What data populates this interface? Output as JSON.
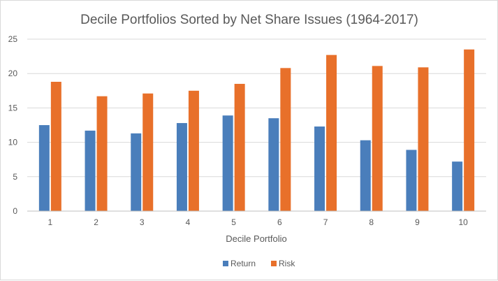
{
  "chart_data": {
    "type": "bar",
    "title": "Decile Portfolios Sorted by Net Share Issues (1964-2017)",
    "xlabel": "Decile Portfolio",
    "ylabel": "",
    "categories": [
      "1",
      "2",
      "3",
      "4",
      "5",
      "6",
      "7",
      "8",
      "9",
      "10"
    ],
    "ylim": [
      0,
      25
    ],
    "yticks": [
      0,
      5,
      10,
      15,
      20,
      25
    ],
    "grid": true,
    "legend_position": "bottom",
    "series": [
      {
        "name": "Return",
        "color": "#4a7ebb",
        "values": [
          12.5,
          11.7,
          11.3,
          12.8,
          13.9,
          13.5,
          12.3,
          10.3,
          8.9,
          7.2
        ]
      },
      {
        "name": "Risk",
        "color": "#e8702a",
        "values": [
          18.8,
          16.7,
          17.1,
          17.5,
          18.5,
          20.8,
          22.7,
          21.1,
          20.9,
          23.5
        ]
      }
    ]
  }
}
